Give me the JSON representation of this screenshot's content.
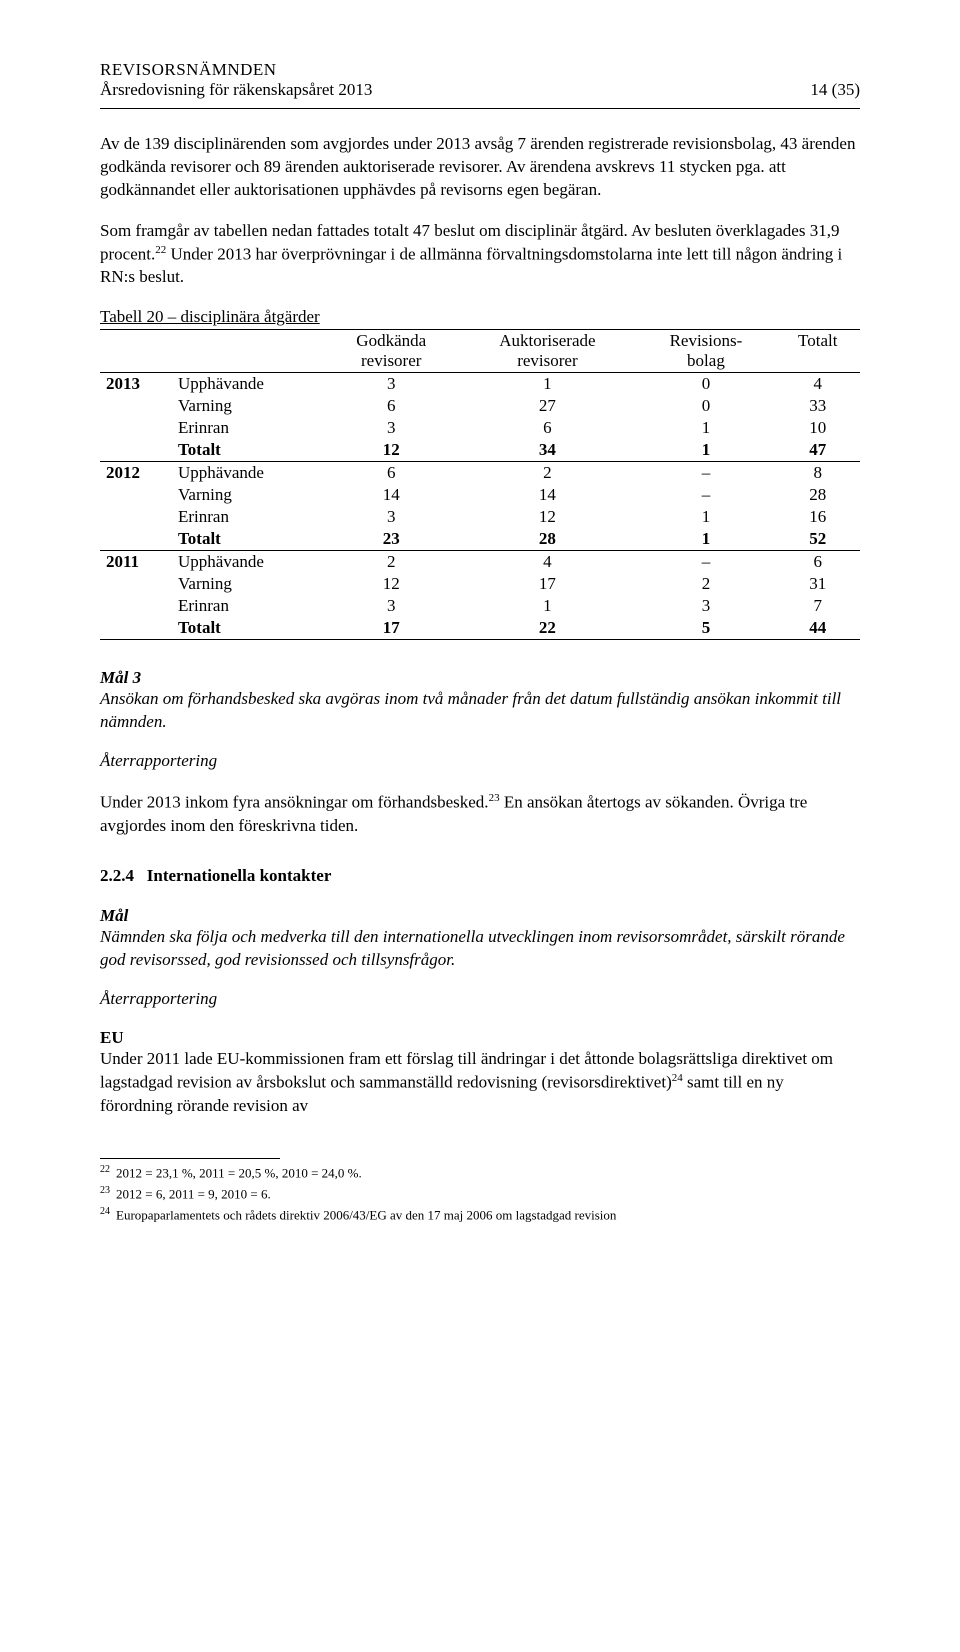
{
  "header": {
    "org": "REVISORSNÄMNDEN",
    "subtitle": "Årsredovisning för räkenskapsåret 2013",
    "pageref": "14 (35)"
  },
  "para1": "Av de 139 disciplinärenden som avgjordes under 2013 avsåg 7 ärenden registrerade revisionsbolag, 43 ärenden godkända revisorer och 89 ärenden auktoriserade revisorer. Av ärendena avskrevs 11 stycken pga. att godkännandet eller auktorisationen upphävdes på revisorns egen begäran.",
  "para2_a": "Som framgår av tabellen nedan fattades totalt 47 beslut om disciplinär åtgärd. Av besluten överklagades 31,9 procent.",
  "para2_fn": "22",
  "para2_b": " Under 2013 har överprövningar i de allmänna förvaltningsdomstolarna inte lett till någon ändring i RN:s beslut.",
  "table": {
    "caption": "Tabell 20 – disciplinära åtgärder",
    "headers": [
      "",
      "",
      "Godkända revisorer",
      "Auktoriserade revisorer",
      "Revisions-bolag",
      "Totalt"
    ],
    "groups": [
      {
        "year": "2013",
        "rows": [
          {
            "label": "Upphävande",
            "vals": [
              "3",
              "1",
              "0",
              "4"
            ]
          },
          {
            "label": "Varning",
            "vals": [
              "6",
              "27",
              "0",
              "33"
            ]
          },
          {
            "label": "Erinran",
            "vals": [
              "3",
              "6",
              "1",
              "10"
            ]
          },
          {
            "label": "Totalt",
            "vals": [
              "12",
              "34",
              "1",
              "47"
            ],
            "bold": true
          }
        ]
      },
      {
        "year": "2012",
        "rows": [
          {
            "label": "Upphävande",
            "vals": [
              "6",
              "2",
              "–",
              "8"
            ]
          },
          {
            "label": "Varning",
            "vals": [
              "14",
              "14",
              "–",
              "28"
            ]
          },
          {
            "label": "Erinran",
            "vals": [
              "3",
              "12",
              "1",
              "16"
            ]
          },
          {
            "label": "Totalt",
            "vals": [
              "23",
              "28",
              "1",
              "52"
            ],
            "bold": true
          }
        ]
      },
      {
        "year": "2011",
        "rows": [
          {
            "label": "Upphävande",
            "vals": [
              "2",
              "4",
              "–",
              "6"
            ]
          },
          {
            "label": "Varning",
            "vals": [
              "12",
              "17",
              "2",
              "31"
            ]
          },
          {
            "label": "Erinran",
            "vals": [
              "3",
              "1",
              "3",
              "7"
            ]
          },
          {
            "label": "Totalt",
            "vals": [
              "17",
              "22",
              "5",
              "44"
            ],
            "bold": true
          }
        ]
      }
    ]
  },
  "mal3": {
    "label": "Mål 3",
    "text": "Ansökan om förhandsbesked ska avgöras inom två månader från det datum fullständig ansökan inkommit till nämnden."
  },
  "aterrapport_label": "Återrapportering",
  "para3_a": "Under 2013 inkom fyra ansökningar om förhandsbesked.",
  "para3_fn": "23",
  "para3_b": " En ansökan återtogs av sökanden. Övriga tre avgjordes inom den föreskrivna tiden.",
  "section224": {
    "num": "2.2.4",
    "title": "Internationella kontakter"
  },
  "mal": {
    "label": "Mål",
    "text": "Nämnden ska följa och medverka till den internationella utvecklingen inom revisorsområdet, särskilt rörande god revisorssed, god revisionssed och tillsynsfrågor."
  },
  "eu_label": "EU",
  "para4_a": "Under 2011 lade EU-kommissionen fram ett förslag till ändringar i det åttonde bolagsrättsliga direktivet om lagstadgad revision av årsbokslut och sammanställd redovisning (revisorsdirektivet)",
  "para4_fn": "24",
  "para4_b": " samt till en ny förordning rörande revision av",
  "footnotes": [
    {
      "num": "22",
      "text": "2012 = 23,1 %, 2011 = 20,5 %, 2010 = 24,0 %."
    },
    {
      "num": "23",
      "text": "2012 = 6, 2011 = 9, 2010 = 6."
    },
    {
      "num": "24",
      "text": "Europaparlamentets och rådets direktiv 2006/43/EG av den 17 maj 2006 om lagstadgad revision"
    }
  ]
}
